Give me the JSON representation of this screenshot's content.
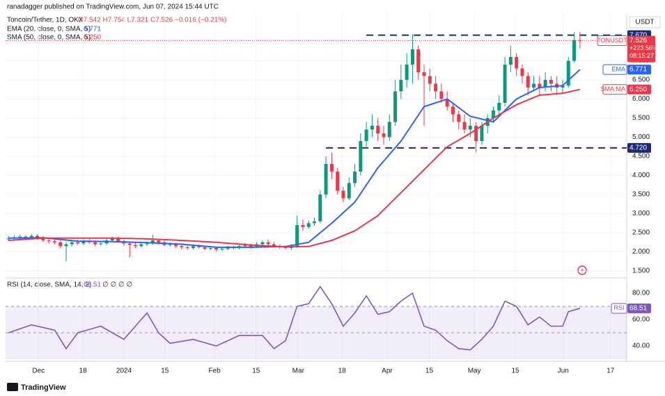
{
  "header": {
    "published": "ranadagger published on TradingView.com, Jun 07, 2024 15:44 UTC",
    "symbol": "Toncoin/Tether, 1D, OKX",
    "ohlc": "O7.542 H7.754 L7.321 C7.526 −0.016 (−0.21%)",
    "ema_label": "EMA (20, close, 0, SMA, 5)",
    "sma_label": "SMA (50, close, 0, SMA, 5)",
    "rsi_label": "RSI (14, close, SMA, 14, 2)",
    "rsi_extra": "∅ ∅ ∅ ∅",
    "currency": "USDT",
    "logo": "TradingView"
  },
  "chart_data": [
    {
      "type": "candlestick",
      "symbol": "TONUSDT",
      "change": "+223.56%",
      "countdown": "08:15:27",
      "up_color": "#089981",
      "down_color": "#f23645",
      "xlim": [
        -0.5,
        107.1
      ],
      "xticks": [
        {
          "value": 5.2,
          "label": "Dec"
        },
        {
          "value": 12.9,
          "label": "18"
        },
        {
          "value": 20,
          "label": "2024"
        },
        {
          "value": 27.1,
          "label": "15"
        },
        {
          "value": 35.7,
          "label": "Feb"
        },
        {
          "value": 42.9,
          "label": "15"
        },
        {
          "value": 50.2,
          "label": "Mar"
        },
        {
          "value": 57.8,
          "label": "18"
        },
        {
          "value": 65.6,
          "label": "Apr"
        },
        {
          "value": 72.9,
          "label": "15"
        },
        {
          "value": 80.7,
          "label": "May"
        },
        {
          "value": 87.8,
          "label": "15"
        },
        {
          "value": 96.1,
          "label": "Jun"
        },
        {
          "value": 104.3,
          "label": "17"
        }
      ],
      "ylim": [
        1.355,
        8.227
      ],
      "yticks": [
        {
          "value": 1.5,
          "label": "1.500"
        },
        {
          "value": 2,
          "label": "2.000"
        },
        {
          "value": 2.5,
          "label": "2.500"
        },
        {
          "value": 3,
          "label": "3.000"
        },
        {
          "value": 3.5,
          "label": "3.500"
        },
        {
          "value": 4,
          "label": "4.000"
        },
        {
          "value": 4.5,
          "label": "4.500"
        },
        {
          "value": 5,
          "label": "5.000"
        },
        {
          "value": 5.5,
          "label": "5.500"
        },
        {
          "value": 6,
          "label": "6.000"
        },
        {
          "value": 6.5,
          "label": "6.500"
        },
        {
          "value": 7,
          "label": "7.000"
        }
      ],
      "levels": [
        {
          "value": 7.67,
          "label": "7.670",
          "color": "#1e2a78"
        },
        {
          "value": 4.72,
          "label": "4.720",
          "color": "#1e2a78"
        }
      ],
      "open": [
        2.33,
        2.35,
        2.38,
        2.4,
        2.36,
        2.42,
        2.38,
        2.3,
        2.28,
        2.25,
        2.15,
        2.2,
        2.25,
        2.22,
        2.28,
        2.25,
        2.2,
        2.22,
        2.3,
        2.35,
        2.28,
        2.22,
        2.18,
        2.15,
        2.2,
        2.22,
        2.3,
        2.25,
        2.18,
        2.2,
        2.15,
        2.12,
        2.1,
        2.15,
        2.12,
        2.08,
        2.1,
        2.06,
        2.08,
        2.12,
        2.1,
        2.15,
        2.18,
        2.12,
        2.2,
        2.25,
        2.2,
        2.15,
        2.12,
        2.1,
        2.15,
        2.7,
        2.65,
        2.75,
        2.8,
        3.5,
        4.3,
        4.1,
        3.6,
        3.4,
        3.8,
        4.1,
        4.9,
        5.2,
        5.3,
        5.1,
        5.0,
        5.4,
        6.2,
        6.5,
        6.9,
        7.3,
        6.7,
        6.6,
        6.4,
        6.2,
        6.0,
        5.8,
        5.6,
        5.4,
        5.2,
        5.3,
        4.9,
        5.3,
        5.5,
        5.7,
        5.9,
        6.9,
        7.1,
        6.8,
        6.6,
        6.3,
        6.4,
        6.3,
        6.5,
        6.4,
        6.3,
        6.35,
        7.0,
        7.542
      ],
      "high": [
        2.42,
        2.44,
        2.45,
        2.44,
        2.47,
        2.46,
        2.42,
        2.34,
        2.32,
        2.3,
        2.26,
        2.3,
        2.32,
        2.33,
        2.33,
        2.3,
        2.27,
        2.35,
        2.4,
        2.4,
        2.32,
        2.26,
        2.24,
        2.25,
        2.27,
        2.45,
        2.34,
        2.3,
        2.25,
        2.24,
        2.2,
        2.16,
        2.2,
        2.2,
        2.16,
        2.14,
        2.14,
        2.12,
        2.16,
        2.16,
        2.2,
        2.24,
        2.22,
        2.26,
        2.3,
        2.32,
        2.26,
        2.2,
        2.16,
        2.2,
        2.95,
        2.85,
        2.82,
        2.9,
        3.6,
        4.5,
        4.6,
        4.2,
        3.7,
        3.95,
        4.3,
        5.1,
        5.4,
        5.6,
        5.5,
        5.3,
        5.6,
        6.5,
        6.9,
        7.2,
        7.7,
        7.4,
        6.9,
        6.8,
        6.6,
        6.4,
        6.2,
        5.9,
        5.7,
        5.6,
        5.5,
        5.4,
        5.4,
        5.6,
        5.8,
        6.1,
        7.1,
        7.4,
        7.2,
        6.9,
        6.7,
        6.6,
        6.6,
        6.7,
        6.6,
        6.6,
        6.5,
        7.1,
        7.75,
        7.754
      ],
      "low": [
        2.28,
        2.3,
        2.33,
        2.3,
        2.32,
        2.32,
        2.25,
        2.22,
        2.2,
        2.1,
        1.75,
        2.14,
        2.18,
        2.18,
        2.2,
        2.15,
        2.16,
        2.18,
        2.26,
        2.24,
        2.16,
        1.85,
        2.1,
        2.12,
        2.15,
        2.18,
        2.18,
        2.14,
        2.14,
        2.1,
        2.06,
        2.05,
        2.06,
        2.08,
        2.04,
        2.04,
        2.02,
        2.02,
        2.04,
        2.06,
        2.06,
        2.1,
        2.08,
        2.1,
        2.16,
        2.16,
        2.12,
        2.08,
        2.06,
        2.05,
        2.1,
        2.55,
        2.6,
        2.68,
        2.75,
        3.4,
        3.9,
        3.5,
        3.3,
        3.35,
        3.7,
        4.0,
        4.7,
        5.0,
        4.9,
        4.8,
        4.9,
        5.3,
        6.0,
        6.3,
        6.4,
        6.5,
        5.3,
        6.2,
        6.0,
        5.9,
        5.7,
        5.4,
        5.2,
        5.1,
        5.0,
        4.6,
        4.8,
        5.1,
        5.4,
        5.6,
        5.8,
        6.7,
        6.6,
        6.4,
        6.1,
        6.2,
        6.1,
        6.2,
        6.2,
        6.1,
        6.15,
        6.3,
        6.95,
        7.321
      ],
      "close": [
        2.35,
        2.38,
        2.4,
        2.36,
        2.42,
        2.38,
        2.3,
        2.28,
        2.25,
        2.15,
        2.2,
        2.25,
        2.22,
        2.28,
        2.25,
        2.2,
        2.22,
        2.3,
        2.35,
        2.28,
        2.22,
        2.18,
        2.15,
        2.2,
        2.22,
        2.3,
        2.25,
        2.18,
        2.2,
        2.15,
        2.12,
        2.1,
        2.15,
        2.12,
        2.08,
        2.1,
        2.06,
        2.08,
        2.12,
        2.1,
        2.15,
        2.18,
        2.12,
        2.2,
        2.25,
        2.2,
        2.15,
        2.12,
        2.1,
        2.15,
        2.7,
        2.65,
        2.75,
        2.8,
        3.5,
        4.3,
        4.1,
        3.6,
        3.4,
        3.8,
        4.1,
        4.9,
        5.2,
        5.3,
        5.1,
        5.0,
        5.4,
        6.2,
        6.5,
        6.9,
        7.3,
        6.7,
        6.6,
        6.4,
        6.2,
        6.0,
        5.8,
        5.6,
        5.4,
        5.2,
        5.3,
        4.9,
        5.3,
        5.5,
        5.7,
        5.9,
        6.9,
        7.1,
        6.8,
        6.6,
        6.3,
        6.4,
        6.3,
        6.5,
        6.4,
        6.3,
        6.35,
        7.0,
        7.542,
        7.526
      ],
      "series": [
        {
          "name": "EMA",
          "color": "#2962ff",
          "x": [
            0,
            6,
            12,
            18,
            24,
            30,
            36,
            42,
            48,
            52,
            56,
            60,
            64,
            68,
            72,
            76,
            80,
            84,
            88,
            92,
            96,
            99
          ],
          "values": [
            2.36,
            2.37,
            2.28,
            2.27,
            2.24,
            2.2,
            2.12,
            2.12,
            2.14,
            2.25,
            2.75,
            3.3,
            4.2,
            4.9,
            5.8,
            6.0,
            5.55,
            5.4,
            6.0,
            6.3,
            6.35,
            6.771
          ]
        },
        {
          "name": "SMA:MA",
          "color": "#e8374a",
          "x": [
            0,
            6,
            12,
            18,
            24,
            30,
            36,
            42,
            48,
            52,
            56,
            60,
            64,
            68,
            72,
            76,
            80,
            84,
            88,
            92,
            96,
            99
          ],
          "values": [
            2.3,
            2.36,
            2.36,
            2.36,
            2.34,
            2.3,
            2.25,
            2.18,
            2.13,
            2.14,
            2.3,
            2.55,
            2.95,
            3.55,
            4.15,
            4.75,
            5.1,
            5.5,
            5.85,
            6.1,
            6.15,
            6.25
          ],
          "last_label": "6.250"
        }
      ]
    },
    {
      "type": "line",
      "ylim": [
        29.5,
        90.5
      ],
      "yticks": [
        {
          "value": 40,
          "label": "40.00"
        },
        {
          "value": 60,
          "label": "60.00"
        },
        {
          "value": 80,
          "label": "80.00"
        }
      ],
      "levels": [
        70,
        50,
        30
      ],
      "series": [
        {
          "name": "RSI",
          "color": "#7e57c2",
          "x": [
            0,
            4,
            8,
            10,
            12,
            16,
            20,
            24,
            26,
            28,
            32,
            36,
            40,
            44,
            46,
            48,
            50,
            52,
            54,
            56,
            58,
            60,
            62,
            64,
            66,
            68,
            70,
            72,
            74,
            76,
            78,
            80,
            82,
            84,
            86,
            88,
            90,
            92,
            94,
            96,
            97,
            99
          ],
          "values": [
            50,
            56,
            52,
            38,
            50,
            55,
            45,
            65,
            50,
            42,
            45,
            40,
            48,
            48,
            38,
            44,
            70,
            72,
            85,
            72,
            55,
            65,
            78,
            64,
            66,
            74,
            80,
            55,
            52,
            44,
            38,
            37,
            45,
            55,
            74,
            70,
            56,
            62,
            55,
            55,
            66,
            68.51
          ]
        }
      ]
    }
  ]
}
